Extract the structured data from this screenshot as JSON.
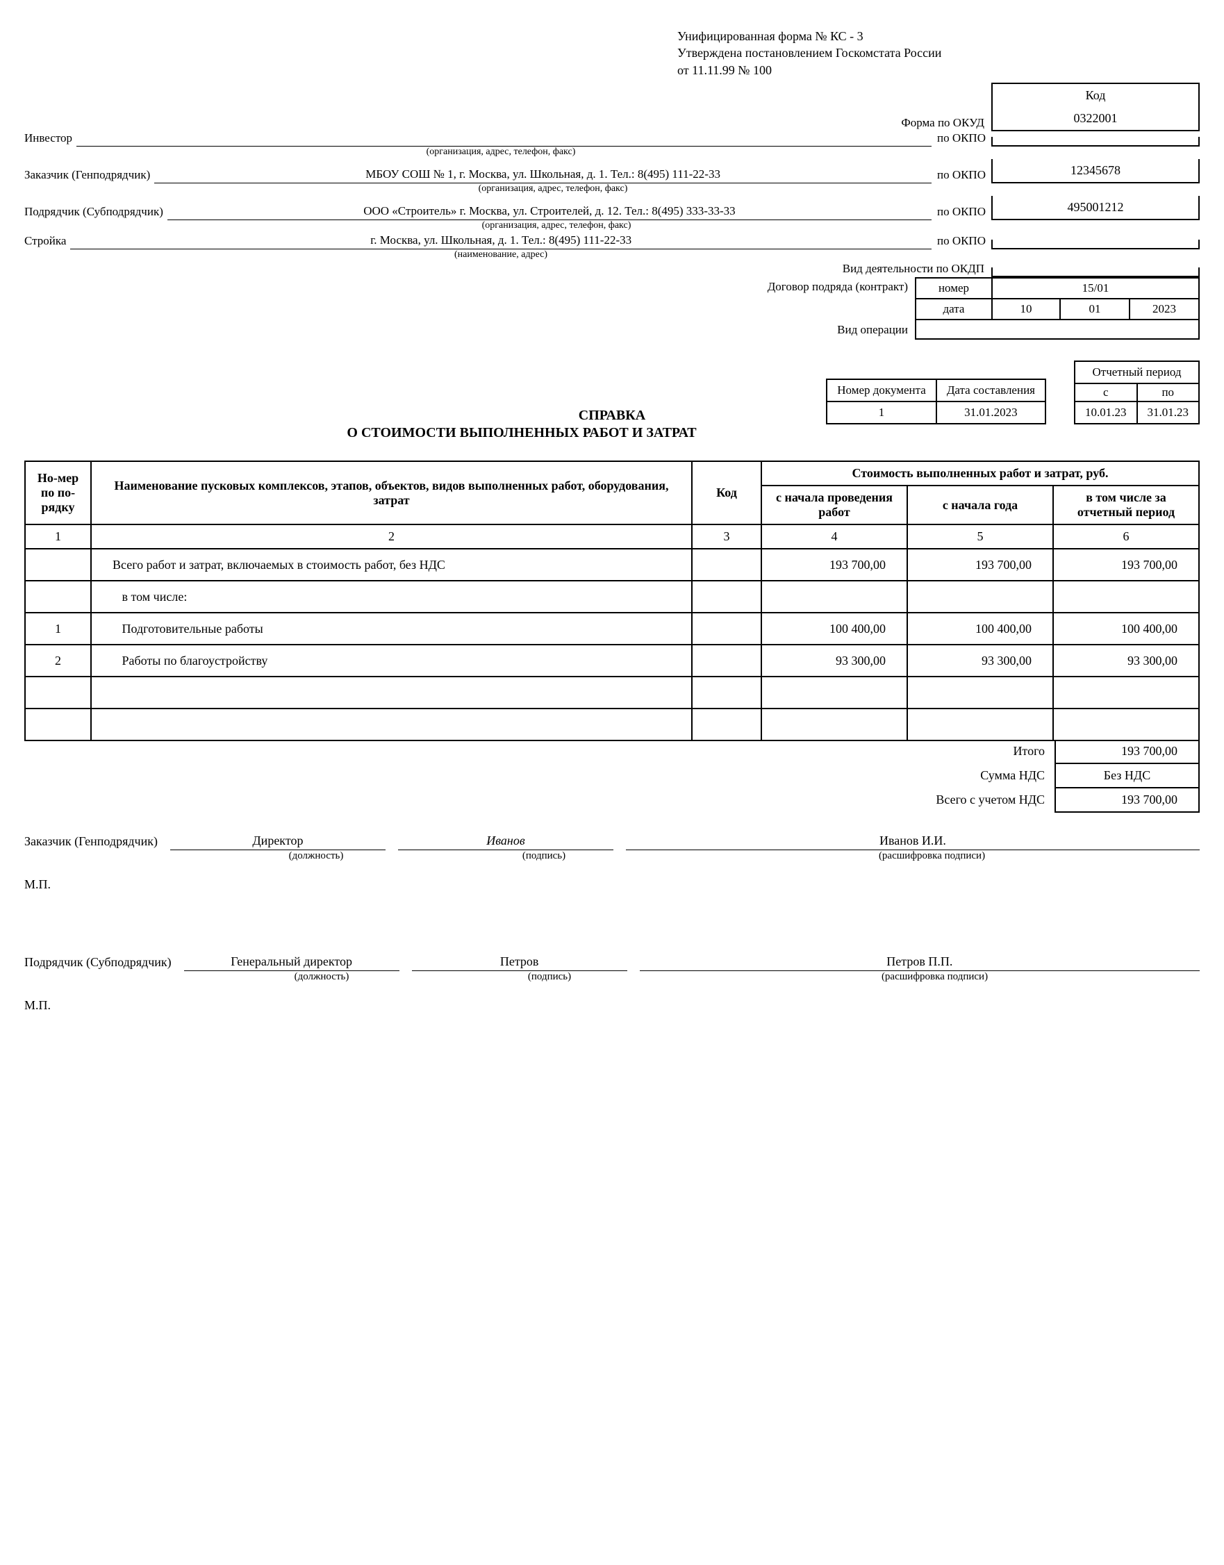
{
  "form_header": {
    "line1": "Унифицированная форма № КС - 3",
    "line2": "Утверждена постановлением Госкомстата России",
    "line3": "от 11.11.99 № 100"
  },
  "code_block": {
    "kod_label": "Код",
    "okud_label": "Форма по ОКУД",
    "okud_value": "0322001",
    "rows": [
      {
        "label": "Инвестор",
        "value": "",
        "right": "по ОКПО",
        "code": "",
        "hint": "(организация, адрес, телефон, факс)"
      },
      {
        "label": "Заказчик  (Генподрядчик)",
        "value": "МБОУ СОШ № 1, г. Москва, ул. Школьная, д. 1. Тел.: 8(495) 111-22-33",
        "right": "по ОКПО",
        "code": "12345678",
        "hint": "(организация, адрес, телефон, факс)"
      },
      {
        "label": "Подрядчик (Субподрядчик)",
        "value": "ООО «Строитель» г. Москва, ул. Строителей, д. 12. Тел.: 8(495) 333-33-33",
        "right": "по ОКПО",
        "code": "495001212",
        "hint": "(организация, адрес, телефон, факс)"
      },
      {
        "label": "Стройка",
        "value": "г. Москва, ул. Школьная, д. 1. Тел.: 8(495) 111-22-33",
        "right": "по ОКПО",
        "code": "",
        "hint": "(наименование, адрес)"
      }
    ],
    "okdp_label": "Вид деятельности по ОКДП",
    "okdp_value": "",
    "contract_label": "Договор подряда (контракт)",
    "contract_number_label": "номер",
    "contract_number": "15/01",
    "contract_date_label": "дата",
    "contract_date": {
      "d": "10",
      "m": "01",
      "y": "2023"
    },
    "op_label": "Вид операции",
    "op_value": ""
  },
  "doc_info": {
    "num_label": "Номер документа",
    "date_label": "Дата составления",
    "num": "1",
    "date": "31.01.2023",
    "period_label": "Отчетный период",
    "from_label": "с",
    "to_label": "по",
    "from": "10.01.23",
    "to": "31.01.23"
  },
  "title": {
    "l1": "СПРАВКА",
    "l2": "О СТОИМОСТИ ВЫПОЛНЕННЫХ РАБОТ И ЗАТРАТ"
  },
  "main_table": {
    "headers": {
      "num": "Но-мер по по-рядку",
      "name": "Наименование пусковых комплексов, этапов, объектов, видов выполненных работ, оборудования, затрат",
      "code": "Код",
      "cost_group": "Стоимость выполненных работ и затрат, руб.",
      "c4": "с начала проведения работ",
      "c5": "с начала года",
      "c6": "в том числе за отчетный период"
    },
    "colnums": [
      "1",
      "2",
      "3",
      "4",
      "5",
      "6"
    ],
    "rows": [
      {
        "n": "",
        "name": "Всего работ и затрат, включаемых в стоимость работ, без НДС",
        "code": "",
        "v4": "193 700,00",
        "v5": "193 700,00",
        "v6": "193 700,00"
      },
      {
        "n": "",
        "name": "   в том числе:",
        "code": "",
        "v4": "",
        "v5": "",
        "v6": ""
      },
      {
        "n": "1",
        "name": "   Подготовительные работы",
        "code": "",
        "v4": "100 400,00",
        "v5": "100 400,00",
        "v6": "100 400,00"
      },
      {
        "n": "2",
        "name": "   Работы по благоустройству",
        "code": "",
        "v4": "93 300,00",
        "v5": "93 300,00",
        "v6": "93 300,00"
      },
      {
        "n": "",
        "name": "",
        "code": "",
        "v4": "",
        "v5": "",
        "v6": ""
      },
      {
        "n": "",
        "name": "",
        "code": "",
        "v4": "",
        "v5": "",
        "v6": ""
      }
    ],
    "totals": {
      "itogo_label": "Итого",
      "itogo": "193 700,00",
      "nds_label": "Сумма НДС",
      "nds": "Без НДС",
      "total_label": "Всего с учетом НДС",
      "total": "193 700,00"
    }
  },
  "signatures": {
    "customer": {
      "role": "Заказчик (Генподрядчик)",
      "position": "Директор",
      "sign": "Иванов",
      "name": "Иванов И.И."
    },
    "contractor": {
      "role": "Подрядчик (Субподрядчик)",
      "position": "Генеральный директор",
      "sign": "Петров",
      "name": "Петров П.П."
    },
    "hints": {
      "pos": "(должность)",
      "sign": "(подпись)",
      "name": "(расшифровка подписи)"
    },
    "mp": "М.П."
  }
}
